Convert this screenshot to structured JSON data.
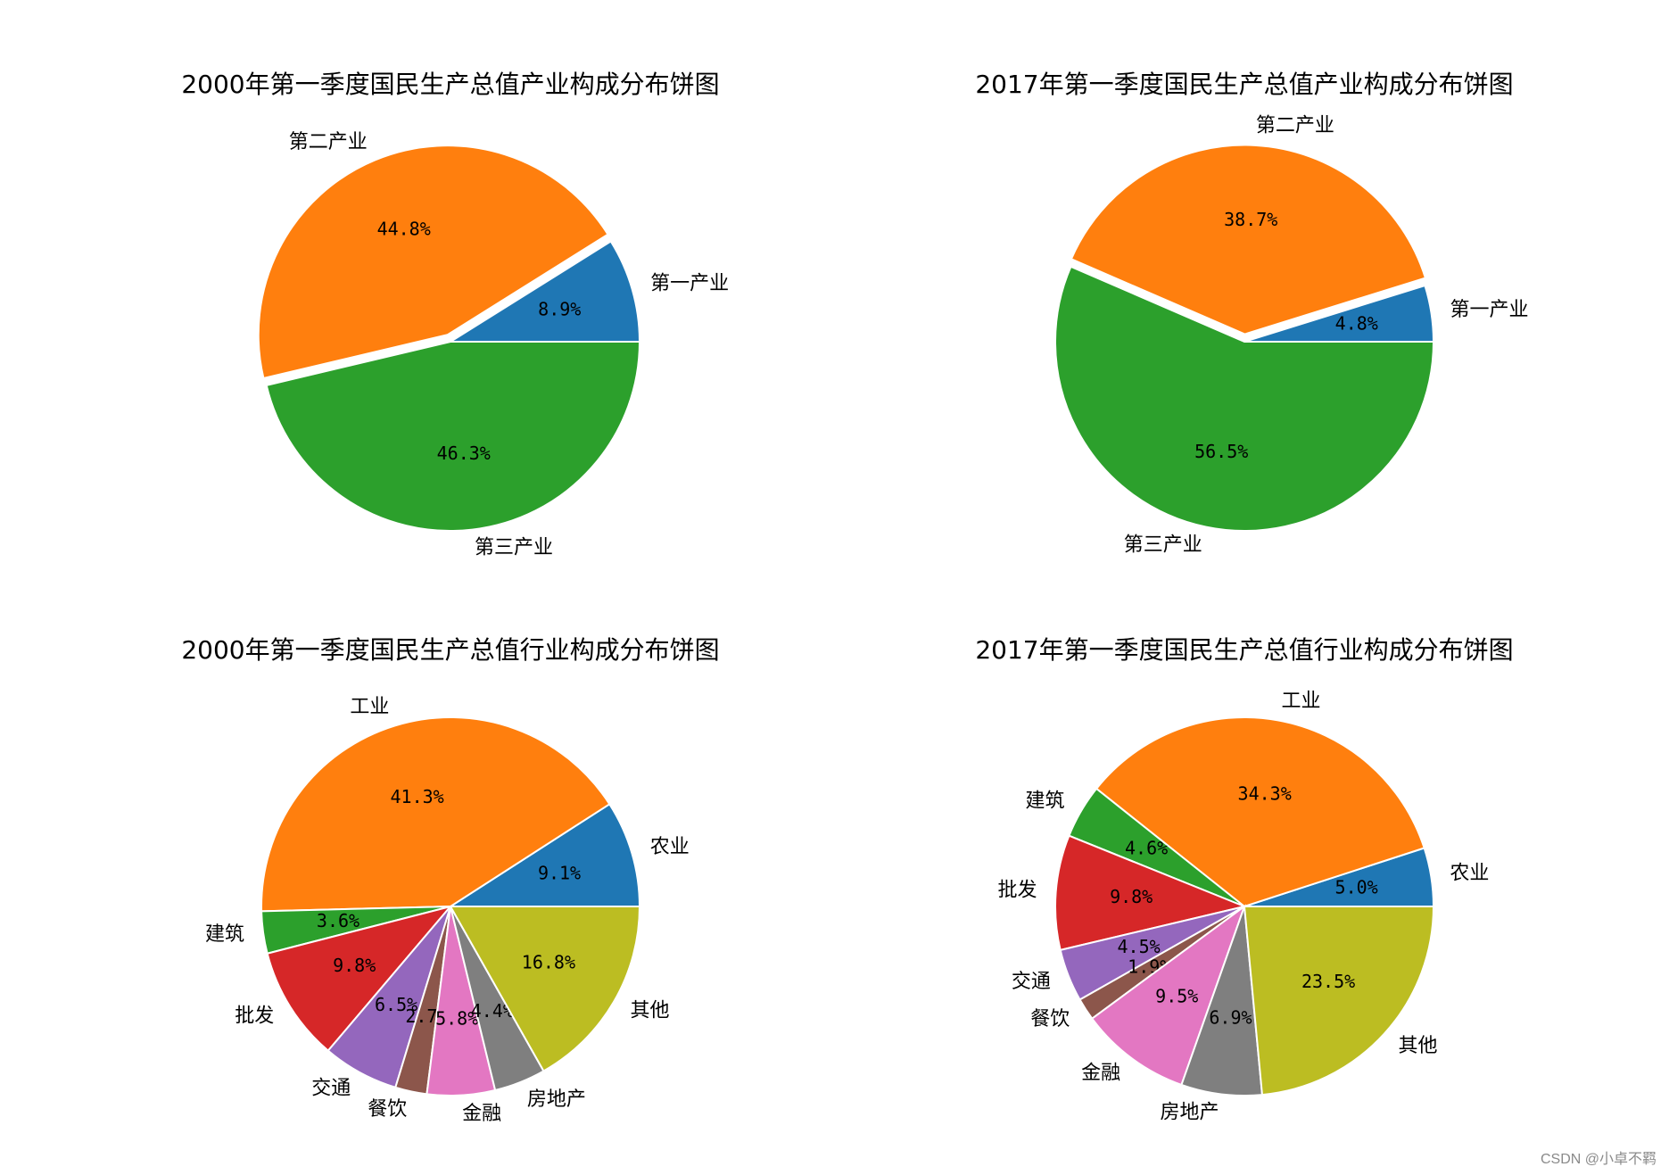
{
  "palette": [
    "#1f77b4",
    "#ff7f0e",
    "#2ca02c",
    "#d62728",
    "#9467bd",
    "#8c564b",
    "#e377c2",
    "#7f7f7f",
    "#bcbd22"
  ],
  "chart_data": [
    {
      "type": "pie",
      "title": "2000年第一季度国民生产总值产业构成分布饼图",
      "categories": [
        "第一产业",
        "第二产业",
        "第三产业"
      ],
      "values": [
        8.9,
        44.8,
        46.3
      ],
      "labels": [
        "8.9%",
        "44.8%",
        "46.3%"
      ],
      "start_angle": 0,
      "explode": [
        0,
        0.02,
        0
      ],
      "direction": "counterclockwise"
    },
    {
      "type": "pie",
      "title": "2017年第一季度国民生产总值产业构成分布饼图",
      "categories": [
        "第一产业",
        "第二产业",
        "第三产业"
      ],
      "values": [
        4.8,
        38.7,
        56.5
      ],
      "labels": [
        "4.8%",
        "38.7%",
        "56.5%"
      ],
      "start_angle": 0,
      "explode": [
        0,
        0.02,
        0
      ],
      "direction": "counterclockwise"
    },
    {
      "type": "pie",
      "title": "2000年第一季度国民生产总值行业构成分布饼图",
      "categories": [
        "农业",
        "工业",
        "建筑",
        "批发",
        "交通",
        "餐饮",
        "金融",
        "房地产",
        "其他"
      ],
      "values": [
        9.1,
        41.3,
        3.6,
        9.8,
        6.5,
        2.7,
        5.8,
        4.4,
        16.8
      ],
      "labels": [
        "9.1%",
        "41.3%",
        "3.6%",
        "9.8%",
        "6.5%",
        "2.7%",
        "5.8%",
        "4.4%",
        "16.8%"
      ],
      "start_angle": 0,
      "explode": [
        0,
        0,
        0,
        0,
        0,
        0,
        0,
        0,
        0
      ],
      "direction": "counterclockwise"
    },
    {
      "type": "pie",
      "title": "2017年第一季度国民生产总值行业构成分布饼图",
      "categories": [
        "农业",
        "工业",
        "建筑",
        "批发",
        "交通",
        "餐饮",
        "金融",
        "房地产",
        "其他"
      ],
      "values": [
        5.0,
        34.3,
        4.6,
        9.8,
        4.5,
        1.9,
        9.5,
        6.9,
        23.5
      ],
      "labels": [
        "5.0%",
        "34.3%",
        "4.6%",
        "9.8%",
        "4.5%",
        "1.9%",
        "9.5%",
        "6.9%",
        "23.5%"
      ],
      "start_angle": 0,
      "explode": [
        0,
        0,
        0,
        0,
        0,
        0,
        0,
        0,
        0
      ],
      "direction": "counterclockwise"
    }
  ],
  "watermark": "CSDN @小卓不羁"
}
